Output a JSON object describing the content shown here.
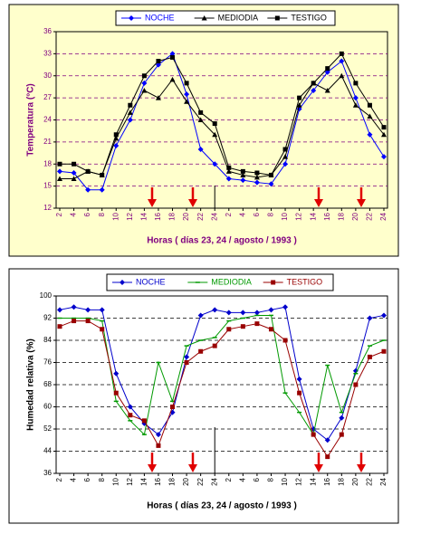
{
  "chart_data": [
    {
      "type": "line",
      "xlabel": "Horas ( días 23, 24 / agosto / 1993 )",
      "ylabel": "Temperatura (°C)",
      "categories": [
        "2",
        "4",
        "6",
        "8",
        "10",
        "12",
        "14",
        "16",
        "18",
        "20",
        "22",
        "24",
        "2",
        "4",
        "6",
        "8",
        "10",
        "12",
        "14",
        "16",
        "18",
        "20",
        "22",
        "24"
      ],
      "ylim": [
        12,
        36
      ],
      "yticks": [
        12,
        15,
        18,
        21,
        24,
        27,
        30,
        33,
        36
      ],
      "grid": true,
      "legend": "top",
      "series": [
        {
          "name": "NOCHE",
          "color": "#0000ff",
          "marker": "diamond",
          "values": [
            17,
            16.8,
            14.5,
            14.5,
            20.5,
            24,
            29,
            31.5,
            33,
            27.5,
            20,
            18,
            16,
            15.8,
            15.5,
            15.3,
            18,
            25.5,
            28,
            30.5,
            32,
            27,
            22,
            19
          ]
        },
        {
          "name": "MEDIODIA",
          "color": "#000000",
          "marker": "triangle",
          "values": [
            16,
            16,
            17,
            16.5,
            21.5,
            25,
            28,
            27,
            29.5,
            26.5,
            24,
            22,
            17,
            16.5,
            16.2,
            16.5,
            19,
            26,
            29,
            28,
            30,
            26,
            24.5,
            22
          ]
        },
        {
          "name": "TESTIGO",
          "color": "#000000",
          "marker": "square",
          "values": [
            18,
            18,
            17,
            16.5,
            22,
            26,
            30,
            32,
            32.5,
            29,
            25,
            23.5,
            17.5,
            17,
            16.8,
            16.5,
            20,
            27,
            29,
            31,
            33,
            29,
            26,
            23
          ]
        }
      ]
    },
    {
      "type": "line",
      "xlabel": "Horas ( días 23, 24 / agosto / 1993 )",
      "ylabel": "Humedad relativa (%)",
      "categories": [
        "2",
        "4",
        "6",
        "8",
        "10",
        "12",
        "14",
        "16",
        "18",
        "20",
        "22",
        "24",
        "2",
        "4",
        "6",
        "8",
        "10",
        "12",
        "14",
        "16",
        "18",
        "20",
        "22",
        "24"
      ],
      "ylim": [
        36,
        100
      ],
      "yticks": [
        36,
        44,
        52,
        60,
        68,
        76,
        84,
        92,
        100
      ],
      "grid": true,
      "legend": "top",
      "series": [
        {
          "name": "NOCHE",
          "color": "#0000cc",
          "marker": "diamond",
          "values": [
            95,
            96,
            95,
            95,
            72,
            60,
            54,
            50,
            58,
            78,
            93,
            95,
            94,
            94,
            94,
            95,
            96,
            70,
            52,
            48,
            56,
            73,
            92,
            93
          ]
        },
        {
          "name": "MEDIODIA",
          "color": "#009900",
          "marker": "dash",
          "values": [
            92,
            92,
            92,
            91,
            62,
            55,
            50,
            76,
            62,
            82,
            84,
            85,
            91,
            92,
            93,
            93,
            65,
            58,
            50,
            75,
            58,
            72,
            82,
            84
          ]
        },
        {
          "name": "TESTIGO",
          "color": "#990000",
          "marker": "square",
          "values": [
            89,
            91,
            91,
            88,
            65,
            57,
            55,
            46,
            60,
            76,
            80,
            82,
            88,
            89,
            90,
            88,
            84,
            65,
            50,
            42,
            50,
            68,
            78,
            80
          ]
        }
      ]
    }
  ]
}
